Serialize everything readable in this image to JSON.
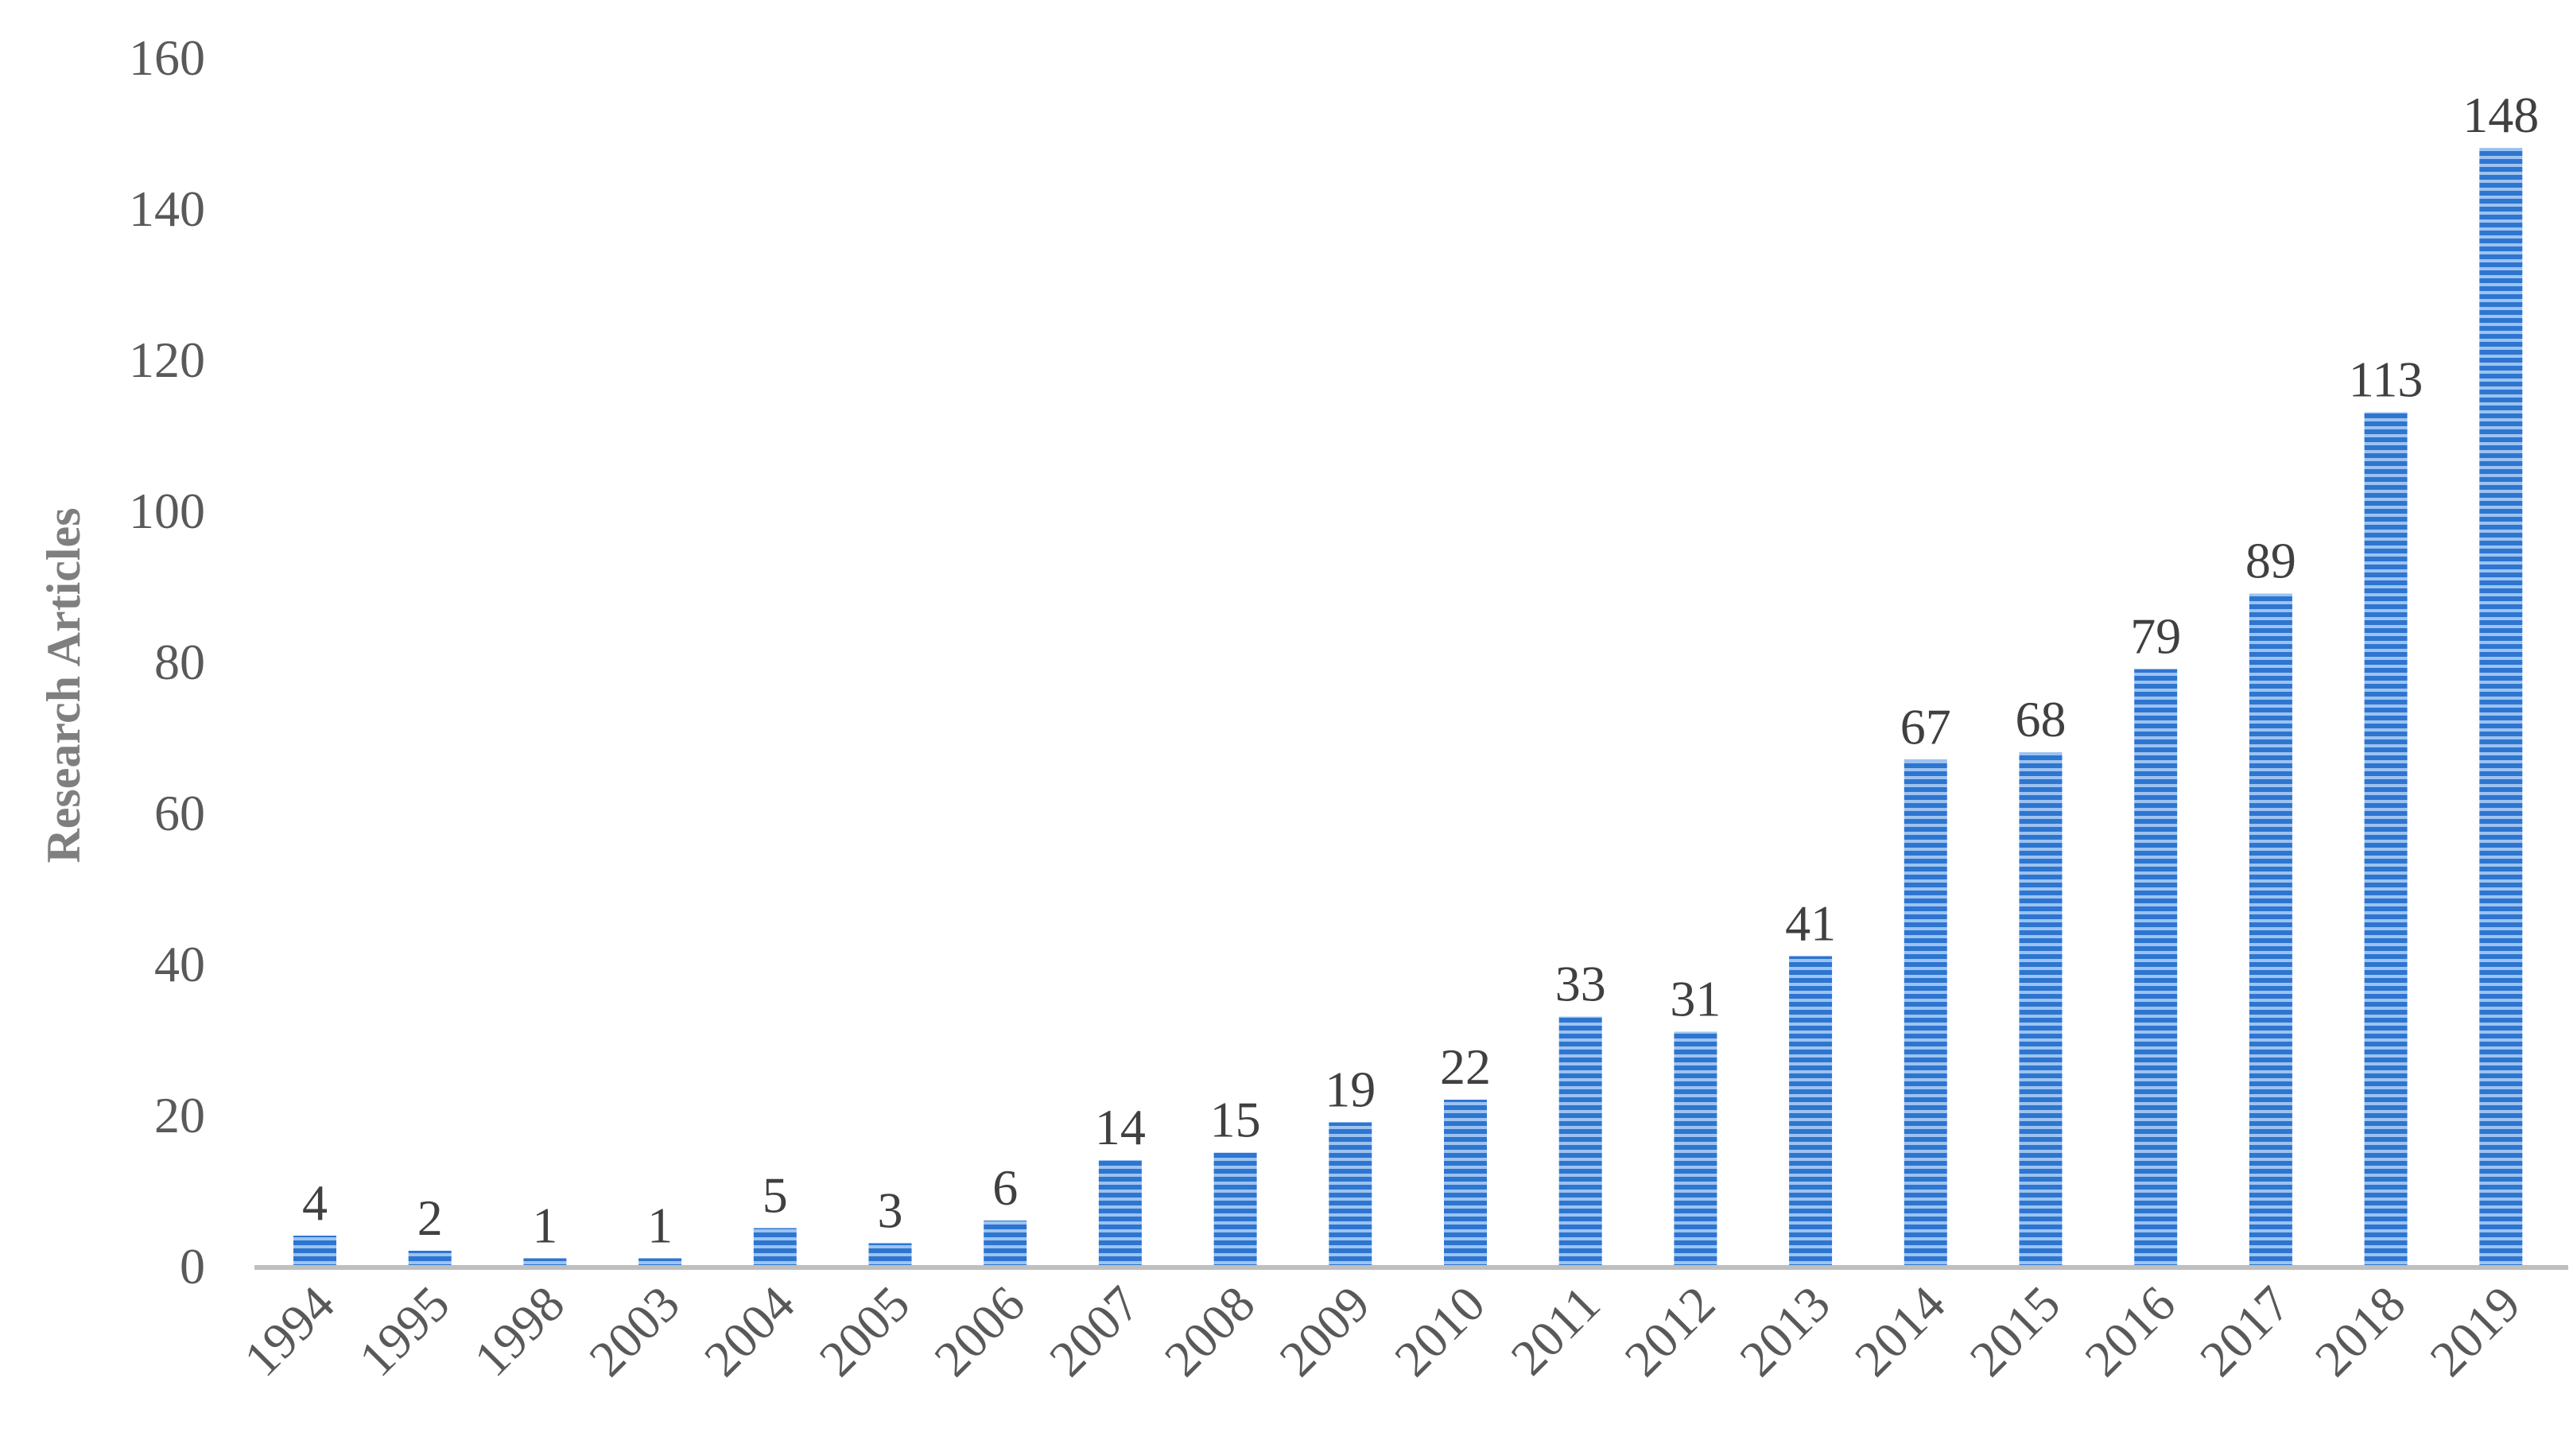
{
  "chart_data": {
    "type": "bar",
    "categories": [
      "1994",
      "1995",
      "1998",
      "2003",
      "2004",
      "2005",
      "2006",
      "2007",
      "2008",
      "2009",
      "2010",
      "2011",
      "2012",
      "2013",
      "2014",
      "2015",
      "2016",
      "2017",
      "2018",
      "2019"
    ],
    "values": [
      4,
      2,
      1,
      1,
      5,
      3,
      6,
      14,
      15,
      19,
      22,
      33,
      31,
      41,
      67,
      68,
      79,
      89,
      113,
      148
    ],
    "title": "",
    "xlabel": "",
    "ylabel": "Research Articles",
    "ylim": [
      0,
      160
    ],
    "yticks": [
      "0",
      "20",
      "40",
      "60",
      "80",
      "100",
      "120",
      "140",
      "160"
    ],
    "grid": false,
    "legend": "none",
    "data_labels": true,
    "colors": {
      "bar": "#2e75d0",
      "bar_stripe": "#9cc3f0",
      "axis": "#bfbfbf",
      "tick_text": "#595959",
      "label_text": "#404040",
      "axis_title": "#7f7f7f"
    }
  }
}
